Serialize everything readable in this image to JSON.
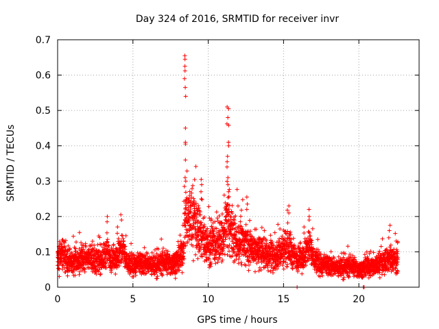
{
  "chart_data": {
    "type": "scatter",
    "title": "Day 324 of 2016, SRMTID for receiver invr",
    "xlabel": "GPS time / hours",
    "ylabel": "SRMTID / TECUs",
    "xlim": [
      0,
      24
    ],
    "ylim": [
      0,
      0.7
    ],
    "xticks": [
      0,
      5,
      10,
      15,
      20
    ],
    "yticks": [
      0,
      0.1,
      0.2,
      0.3,
      0.4,
      0.5,
      0.6,
      0.7
    ],
    "xtick_labels": [
      "0",
      "5",
      "10",
      "15",
      "20"
    ],
    "ytick_labels": [
      "0",
      "0.1",
      "0.2",
      "0.3",
      "0.4",
      "0.5",
      "0.6",
      "0.7"
    ],
    "grid": true,
    "marker": "+",
    "color": "#ff0000",
    "envelope": [
      [
        0.0,
        0.08
      ],
      [
        0.3,
        0.09
      ],
      [
        0.6,
        0.075
      ],
      [
        1.0,
        0.07
      ],
      [
        1.5,
        0.08
      ],
      [
        2.0,
        0.085
      ],
      [
        2.5,
        0.075
      ],
      [
        3.0,
        0.08
      ],
      [
        3.3,
        0.1
      ],
      [
        3.6,
        0.075
      ],
      [
        4.0,
        0.09
      ],
      [
        4.3,
        0.11
      ],
      [
        4.6,
        0.07
      ],
      [
        5.0,
        0.06
      ],
      [
        5.5,
        0.065
      ],
      [
        6.0,
        0.065
      ],
      [
        6.5,
        0.06
      ],
      [
        7.0,
        0.07
      ],
      [
        7.5,
        0.065
      ],
      [
        8.0,
        0.075
      ],
      [
        8.3,
        0.09
      ],
      [
        8.5,
        0.2
      ],
      [
        8.7,
        0.2
      ],
      [
        9.0,
        0.19
      ],
      [
        9.3,
        0.17
      ],
      [
        9.6,
        0.14
      ],
      [
        10.0,
        0.12
      ],
      [
        10.5,
        0.12
      ],
      [
        11.0,
        0.13
      ],
      [
        11.3,
        0.2
      ],
      [
        11.6,
        0.14
      ],
      [
        12.0,
        0.13
      ],
      [
        12.5,
        0.12
      ],
      [
        13.0,
        0.11
      ],
      [
        13.5,
        0.1
      ],
      [
        14.0,
        0.09
      ],
      [
        14.5,
        0.09
      ],
      [
        15.0,
        0.11
      ],
      [
        15.3,
        0.12
      ],
      [
        15.6,
        0.09
      ],
      [
        16.0,
        0.08
      ],
      [
        16.4,
        0.09
      ],
      [
        16.7,
        0.12
      ],
      [
        17.0,
        0.08
      ],
      [
        17.5,
        0.06
      ],
      [
        18.0,
        0.06
      ],
      [
        18.5,
        0.055
      ],
      [
        19.0,
        0.055
      ],
      [
        19.5,
        0.06
      ],
      [
        20.0,
        0.05
      ],
      [
        20.5,
        0.055
      ],
      [
        21.0,
        0.06
      ],
      [
        21.5,
        0.07
      ],
      [
        22.0,
        0.08
      ],
      [
        22.6,
        0.08
      ]
    ],
    "spikes": [
      {
        "x": 8.45,
        "values": [
          0.655,
          0.645,
          0.625,
          0.612,
          0.59,
          0.565,
          0.54,
          0.45,
          0.41,
          0.405,
          0.36,
          0.31,
          0.3,
          0.285
        ]
      },
      {
        "x": 11.3,
        "values": [
          0.51,
          0.505,
          0.48,
          0.462,
          0.458,
          0.41,
          0.4,
          0.37,
          0.355,
          0.34,
          0.31,
          0.29,
          0.27
        ]
      },
      {
        "x": 9.55,
        "values": [
          0.305,
          0.29,
          0.27,
          0.25
        ]
      },
      {
        "x": 12.55,
        "values": [
          0.255,
          0.235,
          0.22
        ]
      },
      {
        "x": 15.3,
        "values": [
          0.23,
          0.21
        ]
      },
      {
        "x": 16.75,
        "values": [
          0.22,
          0.2,
          0.19
        ]
      },
      {
        "x": 4.25,
        "values": [
          0.205,
          0.19
        ]
      },
      {
        "x": 3.25,
        "values": [
          0.2,
          0.185
        ]
      },
      {
        "x": 22.05,
        "values": [
          0.175,
          0.16
        ]
      }
    ],
    "zero_points": [
      15.9,
      20.3,
      20.35
    ]
  }
}
